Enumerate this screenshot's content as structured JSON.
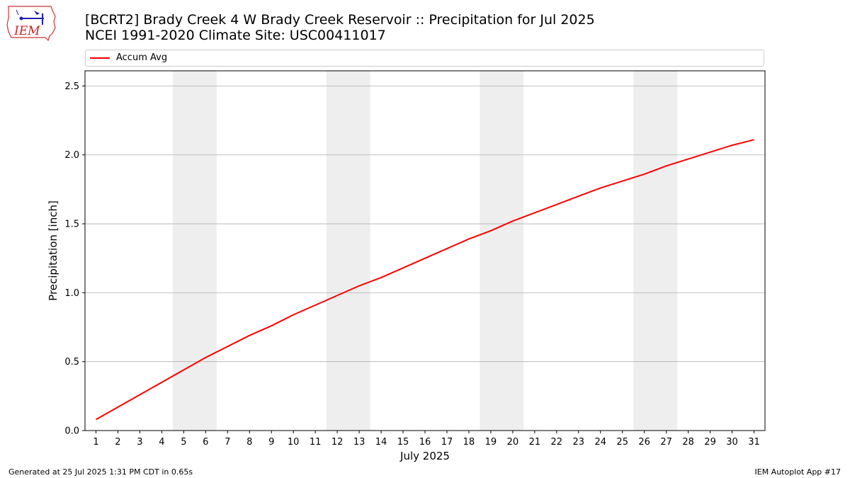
{
  "logo": {
    "text": "IEM"
  },
  "title": {
    "line1": "[BCRT2] Brady Creek 4 W Brady Creek Reservoir :: Precipitation for Jul 2025",
    "line2": "NCEI 1991-2020 Climate Site: USC00411017"
  },
  "legend": {
    "label": "Accum Avg"
  },
  "footer": {
    "left": "Generated at 25 Jul 2025 1:31 PM CDT in 0.65s",
    "right": "IEM Autoplot App #17"
  },
  "colors": {
    "line": "#ff0000",
    "weekend_band": "#eeeeee",
    "grid": "#b0b0b0"
  },
  "chart_data": {
    "type": "line",
    "xlabel": "July 2025",
    "ylabel": "Precipitation [inch]",
    "xlim": [
      0.5,
      31.5
    ],
    "ylim": [
      0,
      2.61
    ],
    "x_ticks": [
      1,
      2,
      3,
      4,
      5,
      6,
      7,
      8,
      9,
      10,
      11,
      12,
      13,
      14,
      15,
      16,
      17,
      18,
      19,
      20,
      21,
      22,
      23,
      24,
      25,
      26,
      27,
      28,
      29,
      30,
      31
    ],
    "y_ticks": [
      0.0,
      0.5,
      1.0,
      1.5,
      2.0,
      2.5
    ],
    "grid": "y",
    "legend_position": "top",
    "weekend_days": [
      [
        5,
        6
      ],
      [
        12,
        13
      ],
      [
        19,
        20
      ],
      [
        26,
        27
      ]
    ],
    "series": [
      {
        "name": "Accum Avg",
        "x": [
          1,
          2,
          3,
          4,
          5,
          6,
          7,
          8,
          9,
          10,
          11,
          12,
          13,
          14,
          15,
          16,
          17,
          18,
          19,
          20,
          21,
          22,
          23,
          24,
          25,
          26,
          27,
          28,
          29,
          30,
          31
        ],
        "values": [
          0.08,
          0.17,
          0.26,
          0.35,
          0.44,
          0.53,
          0.61,
          0.69,
          0.76,
          0.84,
          0.91,
          0.98,
          1.05,
          1.11,
          1.18,
          1.25,
          1.32,
          1.39,
          1.45,
          1.52,
          1.58,
          1.64,
          1.7,
          1.76,
          1.81,
          1.86,
          1.92,
          1.97,
          2.02,
          2.07,
          2.11
        ]
      }
    ]
  }
}
